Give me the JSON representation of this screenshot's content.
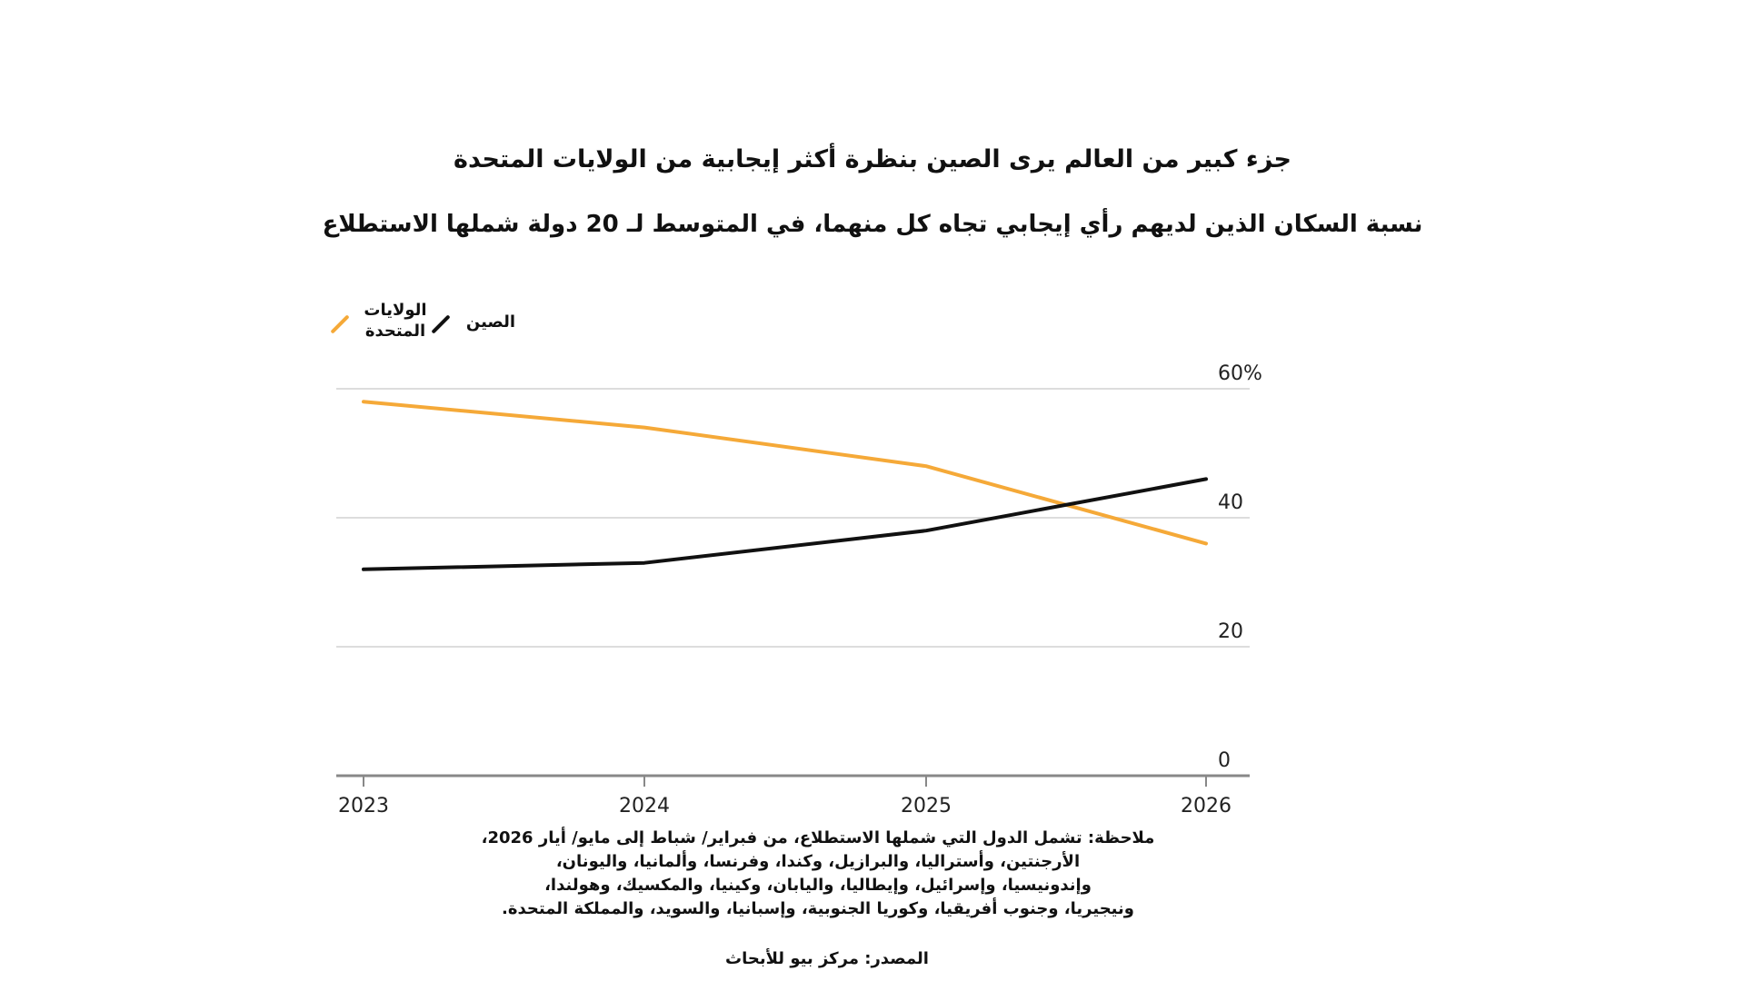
{
  "chart_data": {
    "type": "line",
    "title": "جزء كبير من العالم يرى الصين بنظرة أكثر إيجابية من الولايات المتحدة",
    "subtitle": "نسبة السكان الذين لديهم رأي إيجابي تجاه كل منهما، في المتوسط لـ 20 دولة شملها الاستطلاع",
    "x": [
      "2023",
      "2024",
      "2025",
      "2026"
    ],
    "series": [
      {
        "name": "الولايات المتحدة",
        "color": "#f5a938",
        "values": [
          58,
          54,
          48,
          36
        ]
      },
      {
        "name": "الصين",
        "color": "#111111",
        "values": [
          32,
          33,
          38,
          46
        ]
      }
    ],
    "ylim": [
      0,
      60
    ],
    "yticks": [
      0,
      20,
      40,
      60
    ],
    "ytick_labels": [
      "0",
      "20",
      "40",
      "60%"
    ],
    "xlabel": "",
    "ylabel": "",
    "grid": true,
    "legend_position": "top-left",
    "legend_labels": {
      "us_line1": "الولايات",
      "us_line2": "المتحدة",
      "china": "الصين"
    }
  },
  "note_lines": [
    "ملاحظة: تشمل الدول التي شملها الاستطلاع، من فبراير/ شباط إلى مايو/ أيار 2026،",
    "الأرجنتين، وأستراليا، والبرازيل، وكندا، وفرنسا، وألمانيا، واليونان،",
    "وإندونيسيا، وإسرائيل، وإيطاليا، واليابان، وكينيا، والمكسيك، وهولندا،",
    "ونيجيريا، وجنوب أفريقيا، وكوريا الجنوبية، وإسبانيا، والسويد، والمملكة المتحدة."
  ],
  "source": "المصدر: مركز بيو للأبحاث",
  "colors": {
    "us": "#f5a938",
    "china": "#111111",
    "grid": "#dddddd",
    "axis": "#888888"
  }
}
